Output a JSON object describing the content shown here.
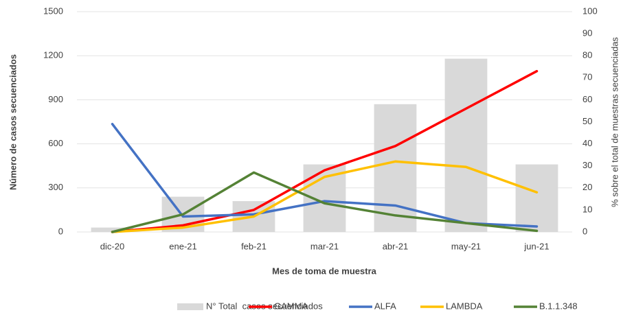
{
  "chart_data": {
    "type": "combo",
    "x_label": "Mes de toma de muestra",
    "y_label": "Número de casos secuenciados",
    "y2_label": "% sobre el total de muestras secuenciadas",
    "categories": [
      "dic-20",
      "ene-21",
      "feb-21",
      "mar-21",
      "abr-21",
      "may-21",
      "jun-21"
    ],
    "ylim": [
      0,
      1500
    ],
    "yticks": [
      0,
      300,
      600,
      900,
      1200,
      1500
    ],
    "y2lim": [
      0,
      100
    ],
    "y2ticks": [
      0,
      10,
      20,
      30,
      40,
      50,
      60,
      70,
      80,
      90,
      100
    ],
    "grid": true,
    "legend": "bottom",
    "series": [
      {
        "name": "N° Total  casos secuenciados",
        "type": "bar",
        "color": "#d9d9d9",
        "values": [
          30,
          240,
          210,
          460,
          870,
          1180,
          460
        ]
      },
      {
        "name": "GAMMA",
        "type": "line",
        "axis": "y2",
        "color": "#ff0000",
        "values": [
          0,
          3,
          10,
          28,
          39,
          56,
          73
        ]
      },
      {
        "name": "ALFA",
        "type": "line",
        "axis": "y2",
        "color": "#4472c4",
        "values": [
          49,
          7,
          8,
          14,
          12,
          4,
          2.5
        ]
      },
      {
        "name": "LAMBDA",
        "type": "line",
        "axis": "y2",
        "color": "#ffc000",
        "values": [
          0,
          2,
          7,
          25,
          32,
          29.5,
          18
        ]
      },
      {
        "name": "B.1.1.348",
        "type": "line",
        "axis": "y2",
        "color": "#548235",
        "values": [
          0,
          8,
          27,
          13,
          7.5,
          4,
          0.5
        ]
      }
    ]
  }
}
